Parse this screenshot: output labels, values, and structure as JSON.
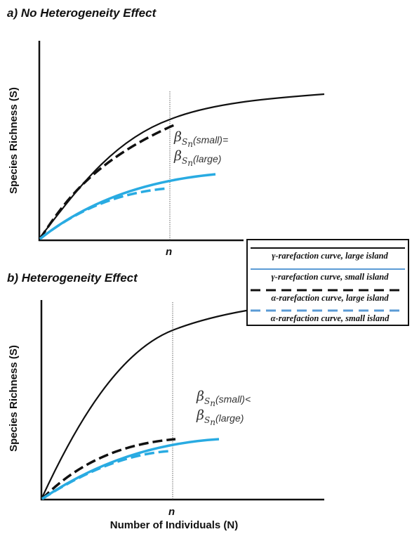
{
  "panels": [
    {
      "title": "a)  No Heterogeneity Effect",
      "ylabel": "Species Richness (S)",
      "x_tick": "n",
      "annotation": {
        "symbol": "β",
        "sub1": "S",
        "sub2": "n",
        "line1_text": "(small)=",
        "line2_text": "(large)"
      }
    },
    {
      "title": "b)  Heterogeneity Effect",
      "ylabel": "Species Richness (S)",
      "xlabel": "Number of Individuals (N)",
      "x_tick": "n",
      "annotation": {
        "symbol": "β",
        "sub1": "S",
        "sub2": "n",
        "line1_text": "(small)<",
        "line2_text": "(large)"
      }
    }
  ],
  "legend": {
    "items": [
      {
        "label": "γ-rarefaction curve, large island",
        "color": "#111111",
        "style": "solid"
      },
      {
        "label": "γ-rarefaction curve, small island",
        "color": "#5b9bd5",
        "style": "solid"
      },
      {
        "label": "α-rarefaction curve, large island",
        "color": "#111111",
        "style": "dashed"
      },
      {
        "label": "α-rarefaction curve, small island",
        "color": "#5b9bd5",
        "style": "dashed"
      }
    ]
  },
  "colors": {
    "black_curve": "#111111",
    "blue_curve": "#29abe2"
  }
}
